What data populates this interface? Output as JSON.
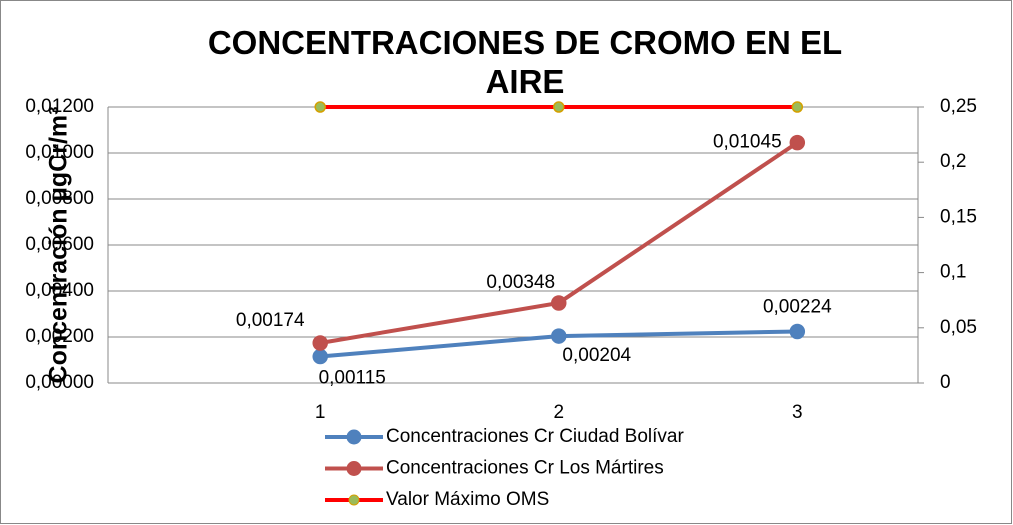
{
  "chart_data": {
    "type": "line",
    "title": "CONCENTRACIONES DE CROMO EN EL AIRE",
    "y_label": "Concentración µgCr/m³",
    "categories": [
      "1",
      "2",
      "3"
    ],
    "ylim": [
      0,
      0.012
    ],
    "yticks": [
      {
        "value": 0,
        "label": "0,00000"
      },
      {
        "value": 0.002,
        "label": "0,00200"
      },
      {
        "value": 0.004,
        "label": "0,00400"
      },
      {
        "value": 0.006,
        "label": "0,00600"
      },
      {
        "value": 0.008,
        "label": "0,00800"
      },
      {
        "value": 0.01,
        "label": "0,01000"
      },
      {
        "value": 0.012,
        "label": "0,01200"
      }
    ],
    "y2lim": [
      0,
      0.25
    ],
    "y2ticks": [
      0,
      {
        "value": 0.05,
        "label": "0,05"
      },
      {
        "value": 0.1,
        "label": "0,1"
      },
      {
        "value": 0.15,
        "label": "0,15"
      },
      {
        "value": 0.2,
        "label": "0,2"
      },
      {
        "value": 0.25,
        "label": "0,25"
      }
    ],
    "grid": true,
    "legend": "bottom",
    "series": [
      {
        "name": "Concentraciones Cr Ciudad Bolívar",
        "color": "#4f81bd",
        "marker_color": "#4f81bd",
        "values": [
          0.00115,
          0.00204,
          0.00224
        ],
        "value_labels": [
          "0,00115",
          "0,00204",
          "0,00224"
        ]
      },
      {
        "name": "Concentraciones Cr Los Mártires",
        "color": "#c0504d",
        "marker_color": "#c0504d",
        "values": [
          0.00174,
          0.00348,
          0.01045
        ],
        "value_labels": [
          "0,00174",
          "0,00348",
          "0,01045"
        ]
      },
      {
        "name": "Valor Máximo OMS",
        "color": "#ff0000",
        "marker_color": "#9bbb59",
        "axis": "y2",
        "values": [
          0.25,
          0.25,
          0.25
        ]
      }
    ]
  }
}
